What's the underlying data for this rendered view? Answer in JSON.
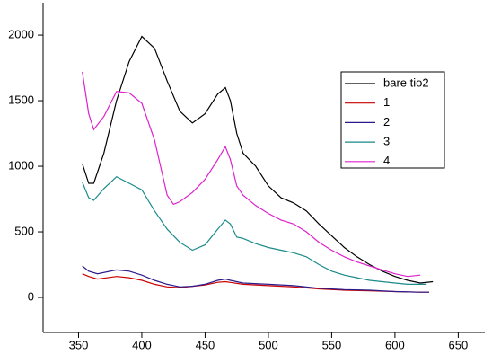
{
  "chart_data": {
    "type": "line",
    "xlim": [
      322,
      671
    ],
    "ylim": [
      -267,
      2247
    ],
    "xticks": [
      350,
      400,
      450,
      500,
      550,
      600,
      650
    ],
    "yticks": [
      0,
      500,
      1000,
      1500,
      2000
    ],
    "legend": "right",
    "series": [
      {
        "name": "bare tio2",
        "color": "#000000",
        "x": [
          353,
          358,
          362,
          370,
          380,
          390,
          400,
          410,
          420,
          430,
          440,
          450,
          460,
          466,
          470,
          475,
          480,
          490,
          500,
          510,
          520,
          530,
          540,
          550,
          560,
          570,
          580,
          590,
          600,
          610,
          620,
          630
        ],
        "values": [
          1020,
          870,
          870,
          1100,
          1500,
          1800,
          1990,
          1900,
          1650,
          1420,
          1330,
          1400,
          1550,
          1600,
          1500,
          1250,
          1100,
          1000,
          850,
          760,
          720,
          660,
          560,
          470,
          380,
          310,
          250,
          200,
          160,
          130,
          110,
          120
        ]
      },
      {
        "name": "1",
        "color": "#cc0000",
        "x": [
          353,
          358,
          365,
          380,
          390,
          400,
          410,
          420,
          430,
          440,
          450,
          460,
          466,
          480,
          500,
          520,
          540,
          560,
          580,
          600,
          620,
          627
        ],
        "values": [
          180,
          160,
          140,
          160,
          150,
          130,
          100,
          80,
          75,
          85,
          95,
          115,
          120,
          100,
          90,
          80,
          65,
          55,
          50,
          45,
          40,
          40
        ]
      },
      {
        "name": "2",
        "color": "#2a1a8c",
        "x": [
          353,
          358,
          365,
          380,
          390,
          400,
          410,
          420,
          430,
          440,
          450,
          460,
          466,
          470,
          480,
          500,
          520,
          540,
          560,
          580,
          600,
          620,
          627
        ],
        "values": [
          240,
          200,
          180,
          210,
          200,
          170,
          130,
          100,
          80,
          85,
          100,
          130,
          140,
          130,
          110,
          100,
          90,
          70,
          60,
          55,
          45,
          40,
          40
        ]
      },
      {
        "name": "3",
        "color": "#1a8a8a",
        "x": [
          353,
          358,
          362,
          370,
          380,
          390,
          400,
          410,
          420,
          430,
          440,
          450,
          460,
          466,
          470,
          475,
          480,
          490,
          500,
          510,
          520,
          530,
          540,
          550,
          560,
          570,
          580,
          590,
          600,
          610,
          620,
          625
        ],
        "values": [
          880,
          760,
          740,
          830,
          920,
          870,
          820,
          660,
          520,
          420,
          360,
          400,
          520,
          590,
          560,
          460,
          450,
          410,
          380,
          360,
          340,
          310,
          250,
          200,
          170,
          150,
          130,
          120,
          110,
          100,
          100,
          100
        ]
      },
      {
        "name": "4",
        "color": "#dd22cc",
        "x": [
          353,
          358,
          362,
          370,
          380,
          390,
          400,
          410,
          420,
          425,
          430,
          440,
          450,
          460,
          466,
          470,
          475,
          480,
          490,
          500,
          510,
          520,
          530,
          540,
          550,
          560,
          570,
          580,
          590,
          600,
          610,
          620
        ],
        "values": [
          1720,
          1400,
          1280,
          1380,
          1570,
          1560,
          1480,
          1200,
          780,
          710,
          730,
          800,
          900,
          1050,
          1150,
          1050,
          850,
          780,
          700,
          640,
          590,
          560,
          500,
          420,
          360,
          310,
          270,
          240,
          210,
          180,
          160,
          170
        ]
      }
    ]
  }
}
